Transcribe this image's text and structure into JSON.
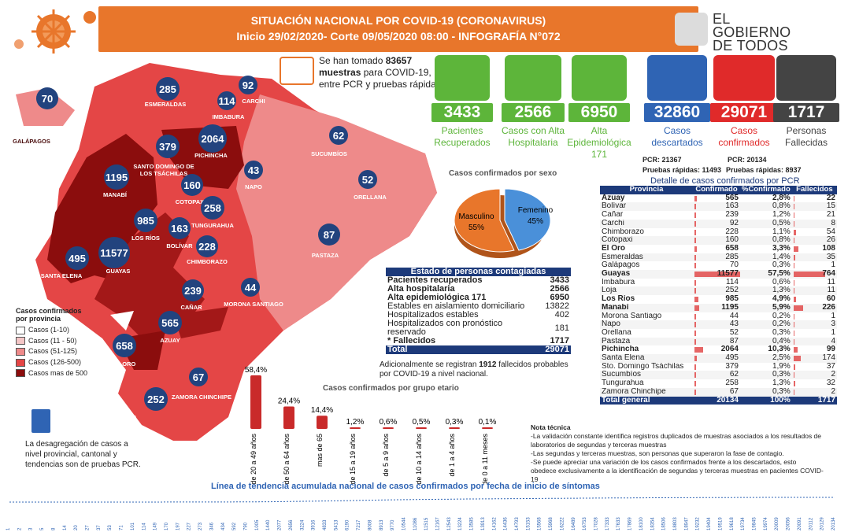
{
  "header": {
    "title": "SITUACIÓN NACIONAL POR  COVID-19 (CORONAVIRUS)",
    "subtitle": "Inicio 29/02/2020- Corte 09/05/2020 08:00  - INFOGRAFÍA N°072"
  },
  "govt": {
    "line1": "EL",
    "line2": "GOBIERNO",
    "line3": "DE TODOS"
  },
  "samples": {
    "prefix": "Se han tomado",
    "count": "83657",
    "bold": "muestras",
    "rest": "para COVID-19, entre PCR y pruebas rápidas"
  },
  "kpis": [
    {
      "value": "3433",
      "label": "Pacientes Recuperados",
      "color": "#5db53a"
    },
    {
      "value": "2566",
      "label": "Casos con Alta Hospitalaria",
      "color": "#5db53a"
    },
    {
      "value": "6950",
      "label": "Alta Epidemiológica",
      "extra": "171",
      "color": "#5db53a"
    },
    {
      "value": "32860",
      "label": "Casos descartados",
      "color": "#2f64b4"
    },
    {
      "value": "29071",
      "label": "Casos confirmados",
      "color": "#e02a2a"
    },
    {
      "value": "1717",
      "label": "Personas Fallecidas",
      "color": "#444444"
    }
  ],
  "kpi_notes": {
    "pcr_desc": "PCR: 21367",
    "rapid_desc": "Pruebas rápidas: 11493",
    "pcr_conf": "PCR: 20134",
    "rapid_conf": "Pruebas rápidas: 8937"
  },
  "map": {
    "bubbles": [
      {
        "v": "70",
        "name": "GALÁPAGOS"
      },
      {
        "v": "285",
        "name": "ESMERALDAS"
      },
      {
        "v": "92",
        "name": "CARCHI"
      },
      {
        "v": "114",
        "name": "IMBABURA"
      },
      {
        "v": "379",
        "name": "SANTO DOMINGO DE LOS TSÁCHILAS"
      },
      {
        "v": "2064",
        "name": "PICHINCHA"
      },
      {
        "v": "62",
        "name": "SUCUMBÍOS"
      },
      {
        "v": "1195",
        "name": "MANABÍ"
      },
      {
        "v": "43",
        "name": "NAPO"
      },
      {
        "v": "160",
        "name": "COTOPAXI"
      },
      {
        "v": "52",
        "name": "ORELLANA"
      },
      {
        "v": "258",
        "name": "TUNGURAHUA"
      },
      {
        "v": "985",
        "name": "LOS RÍOS"
      },
      {
        "v": "163",
        "name": "BOLÍVAR"
      },
      {
        "v": "87",
        "name": "PASTAZA"
      },
      {
        "v": "495",
        "name": "SANTA ELENA"
      },
      {
        "v": "11577",
        "name": "GUAYAS"
      },
      {
        "v": "228",
        "name": "CHIMBORAZO"
      },
      {
        "v": "44",
        "name": "MORONA SANTIAGO"
      },
      {
        "v": "239",
        "name": "CAÑAR"
      },
      {
        "v": "565",
        "name": "AZUAY"
      },
      {
        "v": "658",
        "name": "EL ORO"
      },
      {
        "v": "67",
        "name": "ZAMORA CHINCHIPE"
      },
      {
        "v": "252",
        "name": "LOJA"
      }
    ],
    "legend_title": "Casos confirmados por provincia",
    "legend": [
      {
        "l": "Casos (1-10)",
        "c": "#ffffff"
      },
      {
        "l": "Casos (11 - 50)",
        "c": "#f4c6c6"
      },
      {
        "l": "Casos (51-125)",
        "c": "#ee8a8a"
      },
      {
        "l": "Casos (126-500)",
        "c": "#e44646"
      },
      {
        "l": "Casos mas de 500",
        "c": "#8b0d0d"
      }
    ],
    "disclaimer": "La desagregación de casos a nivel provincial, cantonal y tendencias son de pruebas PCR."
  },
  "sex": {
    "title": "Casos confirmados por sexo",
    "m_label": "Masculino",
    "m_pct": "55%",
    "f_label": "Femenino",
    "f_pct": "45%",
    "m_color": "#e8762b",
    "f_color": "#4a90d9"
  },
  "state": {
    "title": "Estado de personas contagiadas",
    "rows": [
      {
        "l": "Pacientes recuperados",
        "v": "3433",
        "b": true
      },
      {
        "l": "Alta hospitalaria",
        "v": "2566",
        "b": true
      },
      {
        "l": "Alta epidemiológica 171",
        "v": "6950",
        "b": true
      },
      {
        "l": "Estables en aislamiento domiciliario",
        "v": "13822",
        "b": false
      },
      {
        "l": "Hospitalizados estables",
        "v": "402",
        "b": false
      },
      {
        "l": "Hospitalizados con pronóstico reservado",
        "v": "181",
        "b": false
      },
      {
        "l": "* Fallecidos",
        "v": "1717",
        "b": true
      }
    ],
    "total_l": "Total",
    "total_v": "29071",
    "note_a": "Adicionalmente se registran",
    "note_n": "1912",
    "note_b": "fallecidos probables por COVID-19 a nivel nacional."
  },
  "prov": {
    "title": "Detalle de casos confirmados por PCR",
    "h": [
      "Provincia",
      "Confirmado",
      "%Confirmado",
      "Fallecidos"
    ],
    "rows": [
      [
        "Azuay",
        "565",
        "2,8%",
        "22",
        1
      ],
      [
        "Bolívar",
        "163",
        "0,8%",
        "15",
        0
      ],
      [
        "Cañar",
        "239",
        "1,2%",
        "21",
        0
      ],
      [
        "Carchi",
        "92",
        "0,5%",
        "8",
        0
      ],
      [
        "Chimborazo",
        "228",
        "1,1%",
        "54",
        0
      ],
      [
        "Cotopaxi",
        "160",
        "0,8%",
        "26",
        0
      ],
      [
        "El Oro",
        "658",
        "3,3%",
        "108",
        1
      ],
      [
        "Esmeraldas",
        "285",
        "1,4%",
        "35",
        0
      ],
      [
        "Galápagos",
        "70",
        "0,3%",
        "1",
        0
      ],
      [
        "Guayas",
        "11577",
        "57,5%",
        "764",
        1
      ],
      [
        "Imbabura",
        "114",
        "0,6%",
        "11",
        0
      ],
      [
        "Loja",
        "252",
        "1,3%",
        "11",
        0
      ],
      [
        "Los Ríos",
        "985",
        "4,9%",
        "60",
        1
      ],
      [
        "Manabí",
        "1195",
        "5,9%",
        "226",
        1
      ],
      [
        "Morona Santiago",
        "44",
        "0,2%",
        "1",
        0
      ],
      [
        "Napo",
        "43",
        "0,2%",
        "3",
        0
      ],
      [
        "Orellana",
        "52",
        "0,3%",
        "1",
        0
      ],
      [
        "Pastaza",
        "87",
        "0,4%",
        "4",
        0
      ],
      [
        "Pichincha",
        "2064",
        "10,3%",
        "99",
        1
      ],
      [
        "Santa Elena",
        "495",
        "2,5%",
        "174",
        0
      ],
      [
        "Sto. Domingo Tsáchilas",
        "379",
        "1,9%",
        "37",
        0
      ],
      [
        "Sucumbíos",
        "62",
        "0,3%",
        "2",
        0
      ],
      [
        "Tungurahua",
        "258",
        "1,3%",
        "32",
        0
      ],
      [
        "Zamora Chinchipe",
        "67",
        "0,3%",
        "2",
        0
      ]
    ],
    "total": [
      "Total general",
      "20134",
      "100%",
      "1717"
    ]
  },
  "tech": {
    "title": "Nota técnica",
    "lines": [
      "-La validación constante identifica registros duplicados de muestras asociados a los resultados de laboratorios de segundas y terceras muestras",
      "-Las segundas y terceras muestras, son personas que superaron la fase de contagio.",
      "-Se puede apreciar una variación de los casos confirmados frente a los descartados, esto obedece exclusivamente a la identificación de segundas y terceras muestras en pacientes COVID-19"
    ]
  },
  "chart_data": [
    {
      "type": "bar",
      "title": "Casos confirmados por grupo etario",
      "categories": [
        "de 20 a 49 años",
        "de 50 a 64 años",
        "mas de 65",
        "de 15 a 19 años",
        "de 5 a 9 años",
        "de 10 a 14 años",
        "de 1 a 4 años",
        "de 0 a 11 meses"
      ],
      "values": [
        58.4,
        24.4,
        14.4,
        1.2,
        0.6,
        0.5,
        0.3,
        0.1
      ],
      "labels": [
        "58,4%",
        "24,4%",
        "14,4%",
        "1,2%",
        "0,6%",
        "0,5%",
        "0,3%",
        "0,1%"
      ]
    },
    {
      "type": "pie",
      "title": "Casos confirmados por sexo",
      "categories": [
        "Masculino",
        "Femenino"
      ],
      "values": [
        55,
        45
      ]
    },
    {
      "type": "line",
      "title": "Línea de tendencia acumulada nacional de casos confirmados por fecha de inicio de síntomas",
      "values": [
        1,
        2,
        3,
        5,
        8,
        14,
        20,
        27,
        37,
        53,
        71,
        101,
        114,
        149,
        170,
        197,
        227,
        273,
        346,
        434,
        592,
        790,
        1005,
        1440,
        2077,
        2656,
        3224,
        3916,
        4833,
        5413,
        6190,
        7217,
        8008,
        8913,
        9770,
        10544,
        11086,
        11515,
        12167,
        12543,
        13224,
        13585,
        13913,
        14162,
        14436,
        14793,
        15153,
        15568,
        15968,
        16222,
        16489,
        16753,
        17028,
        17333,
        17633,
        17869,
        18100,
        18354,
        18506,
        18803,
        18947,
        19232,
        19404,
        19519,
        19618,
        19734,
        19845,
        19974,
        20009,
        20056,
        20091,
        20112,
        20129,
        20134
      ],
      "labels": [
        "1",
        "2",
        "3",
        "5",
        "8",
        "14",
        "20",
        "27",
        "37",
        "53",
        "71",
        "101",
        "114",
        "149",
        "170",
        "197",
        "227",
        "273",
        "346",
        "434",
        "592",
        "790",
        "1005",
        "1440",
        "2077",
        "2656",
        "3224",
        "3916",
        "4833",
        "5413",
        "6190",
        "7217",
        "8008",
        "8913",
        "9770",
        "10544",
        "11086",
        "11515",
        "12167",
        "12543",
        "13224",
        "13585",
        "13913",
        "14162",
        "14436",
        "14793",
        "15153",
        "15568",
        "15968",
        "16222",
        "16489",
        "16753",
        "17028",
        "17333",
        "17633",
        "17869",
        "18100",
        "18354",
        "18506",
        "18803",
        "18947",
        "19232",
        "19404",
        "19519",
        "19618",
        "19734",
        "19845",
        "19974",
        "20009",
        "20056",
        "20091",
        "20112",
        "20129",
        "20134"
      ]
    }
  ]
}
